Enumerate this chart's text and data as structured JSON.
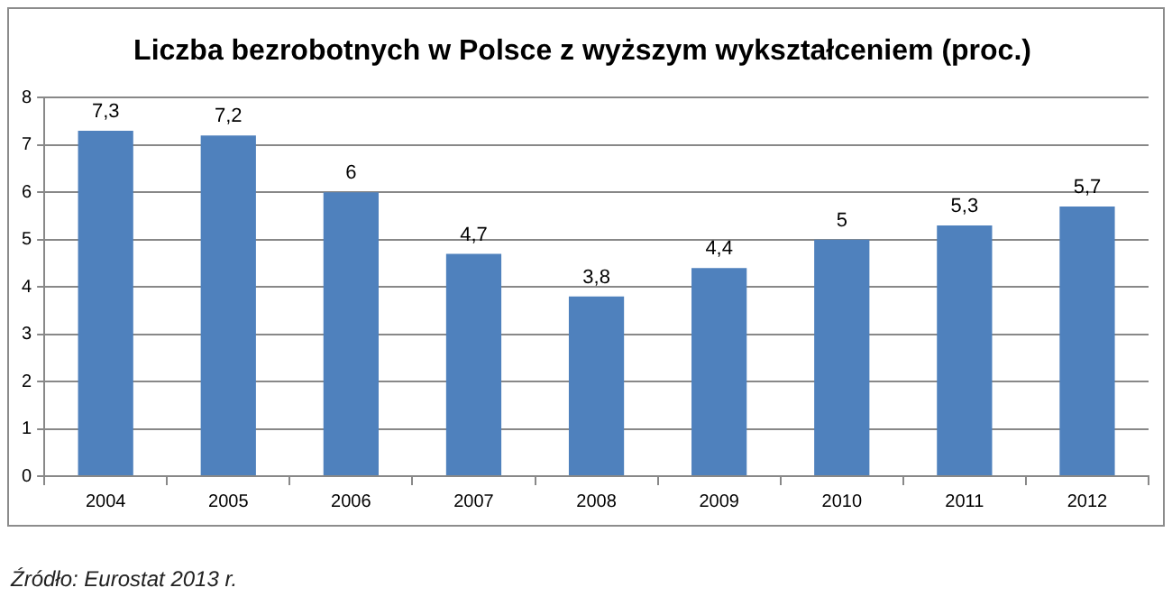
{
  "chart_data": {
    "type": "bar",
    "title": "Liczba bezrobotnych w Polsce z wyższym wykształceniem (proc.)",
    "categories": [
      "2004",
      "2005",
      "2006",
      "2007",
      "2008",
      "2009",
      "2010",
      "2011",
      "2012"
    ],
    "values": [
      7.3,
      7.2,
      6,
      4.7,
      3.8,
      4.4,
      5,
      5.3,
      5.7
    ],
    "value_labels": [
      "7,3",
      "7,2",
      "6",
      "4,7",
      "3,8",
      "4,4",
      "5",
      "5,3",
      "5,7"
    ],
    "color": "#4f81bd",
    "ylim": [
      0,
      8
    ],
    "yticks": [
      0,
      1,
      2,
      3,
      4,
      5,
      6,
      7,
      8
    ],
    "grid": "y",
    "annotations": [
      "Źródło: Eurostat  2013 r."
    ]
  }
}
